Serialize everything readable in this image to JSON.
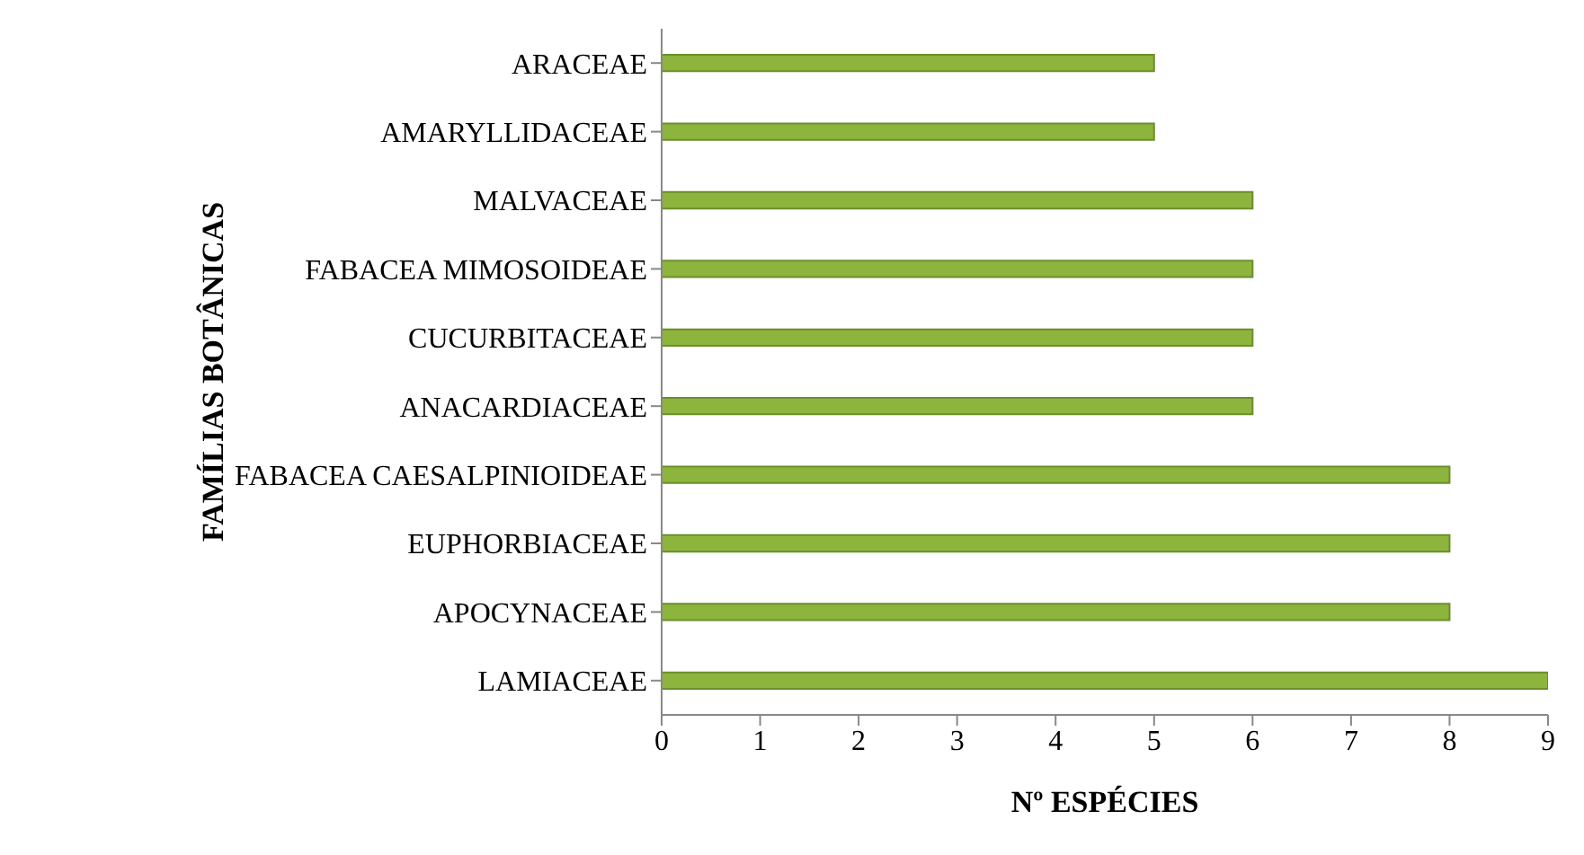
{
  "chart_data": {
    "type": "bar",
    "orientation": "horizontal",
    "xlabel": "Nº ESPÉCIES",
    "ylabel": "FAMÍLIAS BOTÂNICAS",
    "categories": [
      "ARACEAE",
      "AMARYLLIDACEAE",
      "MALVACEAE",
      "FABACEA MIMOSOIDEAE",
      "CUCURBITACEAE",
      "ANACARDIACEAE",
      "FABACEA CAESALPINIOIDEAE",
      "EUPHORBIACEAE",
      "APOCYNACEAE",
      "LAMIACEAE"
    ],
    "values": [
      5,
      5,
      6,
      6,
      6,
      6,
      8,
      8,
      8,
      9
    ],
    "color": "#8db43c",
    "xlim": [
      0,
      9
    ],
    "xticks": [
      0,
      1,
      2,
      3,
      4,
      5,
      6,
      7,
      8,
      9
    ],
    "grid": false,
    "legend": false
  }
}
